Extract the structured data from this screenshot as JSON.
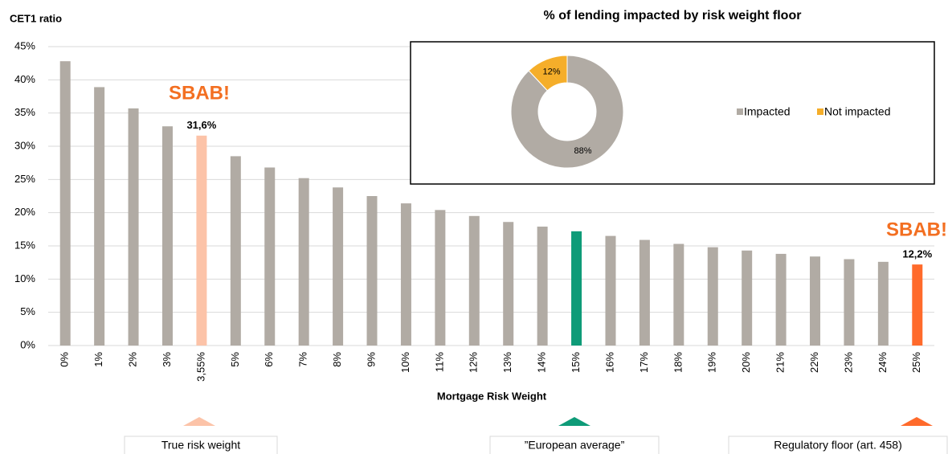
{
  "chart_data": [
    {
      "type": "bar",
      "y_axis_label": "CET1 ratio",
      "x_axis_label": "Mortgage Risk Weight",
      "categories": [
        "0%",
        "1%",
        "2%",
        "3%",
        "3,55%",
        "5%",
        "6%",
        "7%",
        "8%",
        "9%",
        "10%",
        "11%",
        "12%",
        "13%",
        "14%",
        "15%",
        "16%",
        "17%",
        "18%",
        "19%",
        "20%",
        "21%",
        "22%",
        "23%",
        "24%",
        "25%"
      ],
      "values": [
        42.8,
        38.9,
        35.7,
        33.0,
        31.6,
        28.5,
        26.8,
        25.2,
        23.8,
        22.5,
        21.4,
        20.4,
        19.5,
        18.6,
        17.9,
        17.2,
        16.5,
        15.9,
        15.3,
        14.8,
        14.3,
        13.8,
        13.4,
        13.0,
        12.6,
        12.2
      ],
      "value_labels": [
        null,
        null,
        null,
        null,
        "31,6%",
        null,
        null,
        null,
        null,
        null,
        null,
        null,
        null,
        null,
        null,
        null,
        null,
        null,
        null,
        null,
        null,
        null,
        null,
        null,
        null,
        "12,2%"
      ],
      "colors": [
        "#b1aba4",
        "#b1aba4",
        "#b1aba4",
        "#b1aba4",
        "#fcc3a8",
        "#b1aba4",
        "#b1aba4",
        "#b1aba4",
        "#b1aba4",
        "#b1aba4",
        "#b1aba4",
        "#b1aba4",
        "#b1aba4",
        "#b1aba4",
        "#b1aba4",
        "#0e9b78",
        "#b1aba4",
        "#b1aba4",
        "#b1aba4",
        "#b1aba4",
        "#b1aba4",
        "#b1aba4",
        "#b1aba4",
        "#b1aba4",
        "#b1aba4",
        "#ff6a2b"
      ],
      "ylim": [
        0,
        45
      ],
      "yticks": [
        {
          "value": 0,
          "label": "0%"
        },
        {
          "value": 5,
          "label": "5%"
        },
        {
          "value": 10,
          "label": "10%"
        },
        {
          "value": 15,
          "label": "15%"
        },
        {
          "value": 20,
          "label": "20%"
        },
        {
          "value": 25,
          "label": "25%"
        },
        {
          "value": 30,
          "label": "30%"
        },
        {
          "value": 35,
          "label": "35%"
        },
        {
          "value": 40,
          "label": "40%"
        },
        {
          "value": 45,
          "label": "45%"
        }
      ],
      "grid": true,
      "annotations": [
        "SBAB!",
        "SBAB!"
      ],
      "callouts": [
        "True risk weight",
        "”European average”",
        "Regulatory floor (art. 458)"
      ]
    },
    {
      "type": "donut",
      "title": "% of lending impacted by risk weight floor",
      "categories": [
        "Impacted",
        "Not impacted"
      ],
      "values": [
        88,
        12
      ],
      "value_labels": [
        "88%",
        "12%"
      ],
      "colors": [
        "#b1aba4",
        "#f5ae2a"
      ],
      "legend": "right"
    }
  ]
}
